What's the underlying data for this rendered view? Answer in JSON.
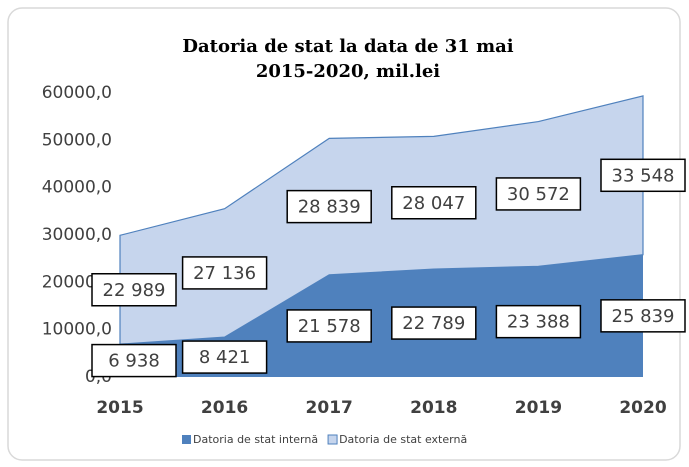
{
  "chart_data": {
    "type": "stacked-area",
    "title": [
      "Datoria de stat la data de 31 mai",
      "2015-2020, mil.lei"
    ],
    "categories": [
      "2015",
      "2016",
      "2017",
      "2018",
      "2019",
      "2020"
    ],
    "series": [
      {
        "name": "Datoria de stat internă",
        "color": "#4f81bd",
        "values": [
          6938,
          8421,
          21578,
          22789,
          23388,
          25839
        ],
        "value_labels": [
          "6 938",
          "8 421",
          "21 578",
          "22 789",
          "23 388",
          "25 839"
        ]
      },
      {
        "name": "Datoria de stat externă",
        "color": "#c6d5ed",
        "values": [
          22989,
          27136,
          28839,
          28047,
          30572,
          33548
        ],
        "value_labels": [
          "22 989",
          "27 136",
          "28 839",
          "28 047",
          "30 572",
          "33 548"
        ]
      }
    ],
    "ylim": [
      0,
      60000
    ],
    "yticks": [
      {
        "value": 0,
        "label": "0,0"
      },
      {
        "value": 10000,
        "label": "10000,0"
      },
      {
        "value": 20000,
        "label": "20000,0"
      },
      {
        "value": 30000,
        "label": "30000,0"
      },
      {
        "value": 40000,
        "label": "40000,0"
      },
      {
        "value": 50000,
        "label": "50000,0"
      },
      {
        "value": 60000,
        "label": "60000,0"
      }
    ],
    "grid": false,
    "legend": "bottom"
  }
}
